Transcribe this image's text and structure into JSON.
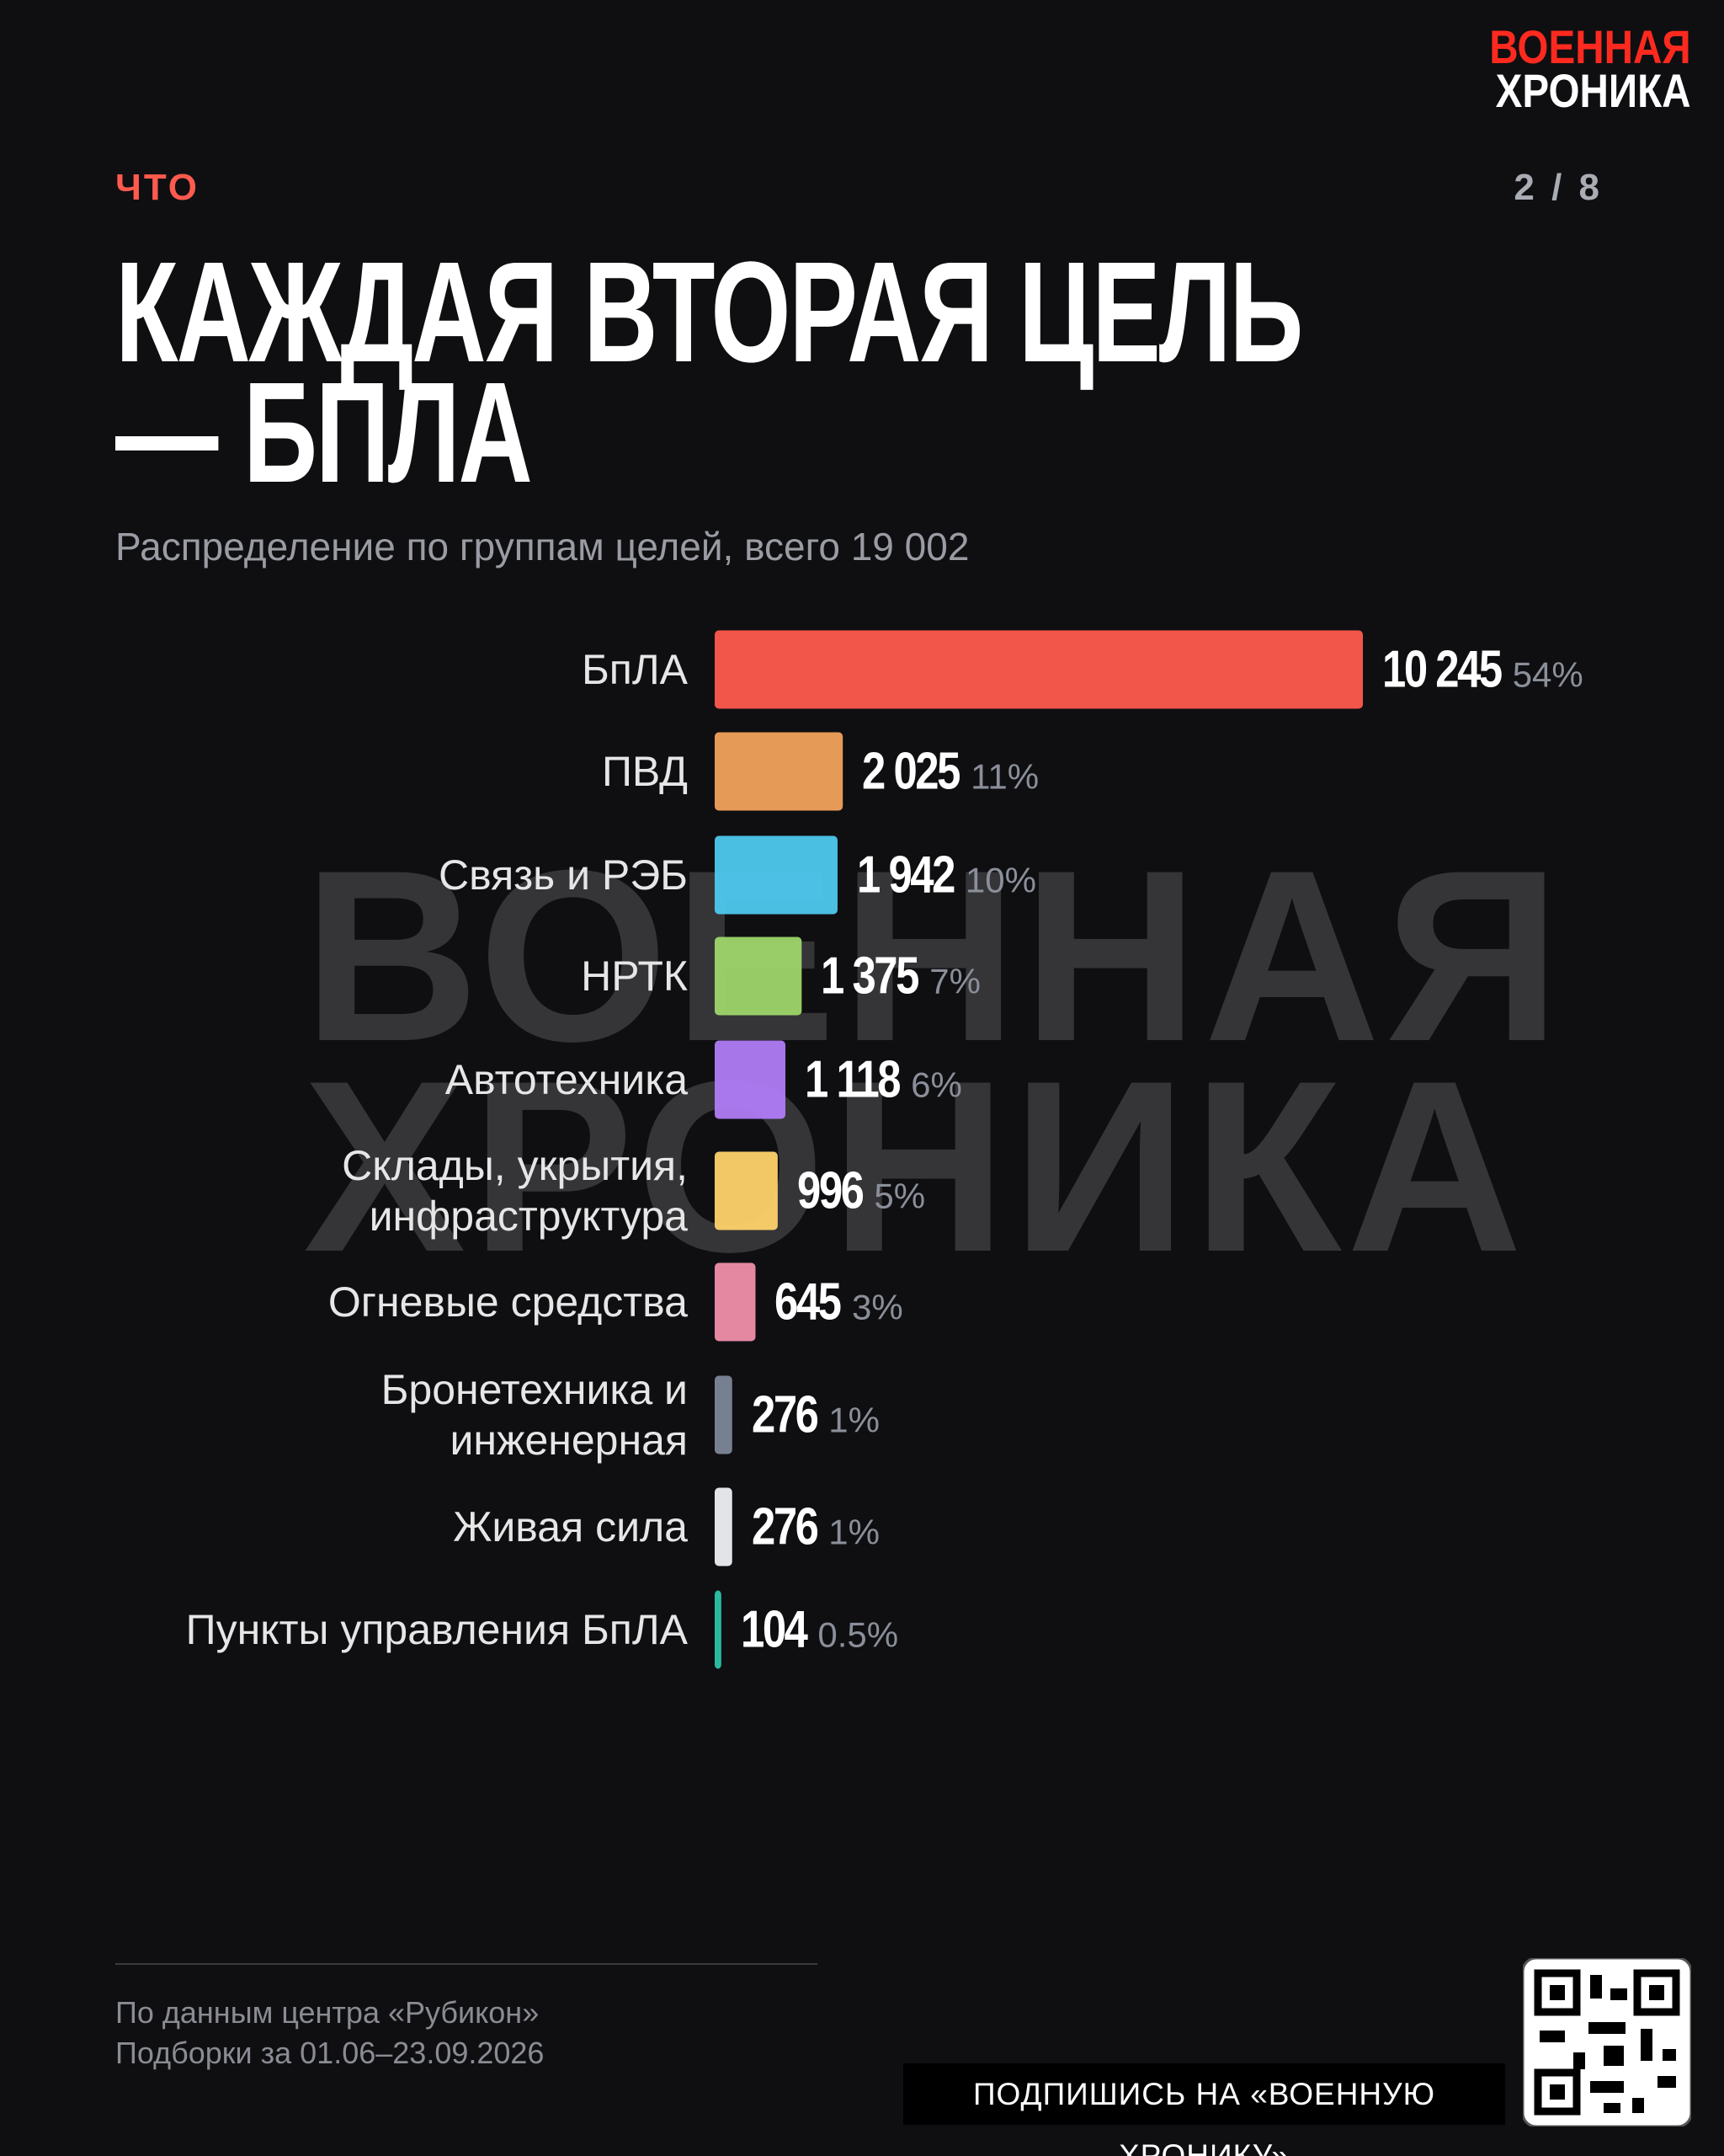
{
  "header": {
    "section": "ЧТО",
    "page": "2 / 8",
    "logo": [
      "ВОЕННАЯ",
      "ХРОНИКА"
    ]
  },
  "chart_data": {
    "type": "bar",
    "orientation": "horizontal",
    "title": "КАЖДАЯ ВТОРАЯ ЦЕЛЬ — БПЛА",
    "subtitle": "Распределение по группам целей, всего 19 002",
    "categories": [
      "БпЛА",
      "ПВД",
      "Связь и РЭБ",
      "НРТК",
      "Автотехника",
      "Склады, укрытия, инфраструктура",
      "Огневые средства",
      "Бронетехника и инженерная",
      "Живая сила",
      "Пункты управления БпЛА"
    ],
    "values": [
      10245,
      2025,
      1942,
      1375,
      1118,
      996,
      645,
      276,
      276,
      104
    ],
    "value_labels": [
      "10 245",
      "2 025",
      "1 942",
      "1 375",
      "1 118",
      "996",
      "645",
      "276",
      "276",
      "104"
    ],
    "share_labels": [
      "54%",
      "11%",
      "10%",
      "7%",
      "6%",
      "5%",
      "3%",
      "1%",
      "1%",
      "0.5%"
    ],
    "colors": [
      "#ff5a4e",
      "#f2a25c",
      "#4fc9ee",
      "#9ed66a",
      "#b07cf5",
      "#ffd36b",
      "#f08fab",
      "#7d8798",
      "#eef0f4",
      "#2ec4a8"
    ]
  },
  "footer": {
    "source": "По данным центра «Рубикон»",
    "period": "Подборки за 01.06–23.09.2026",
    "subscribe": "ПОДПИШИСЬ НА «ВОЕННУЮ ХРОНИКУ»"
  }
}
